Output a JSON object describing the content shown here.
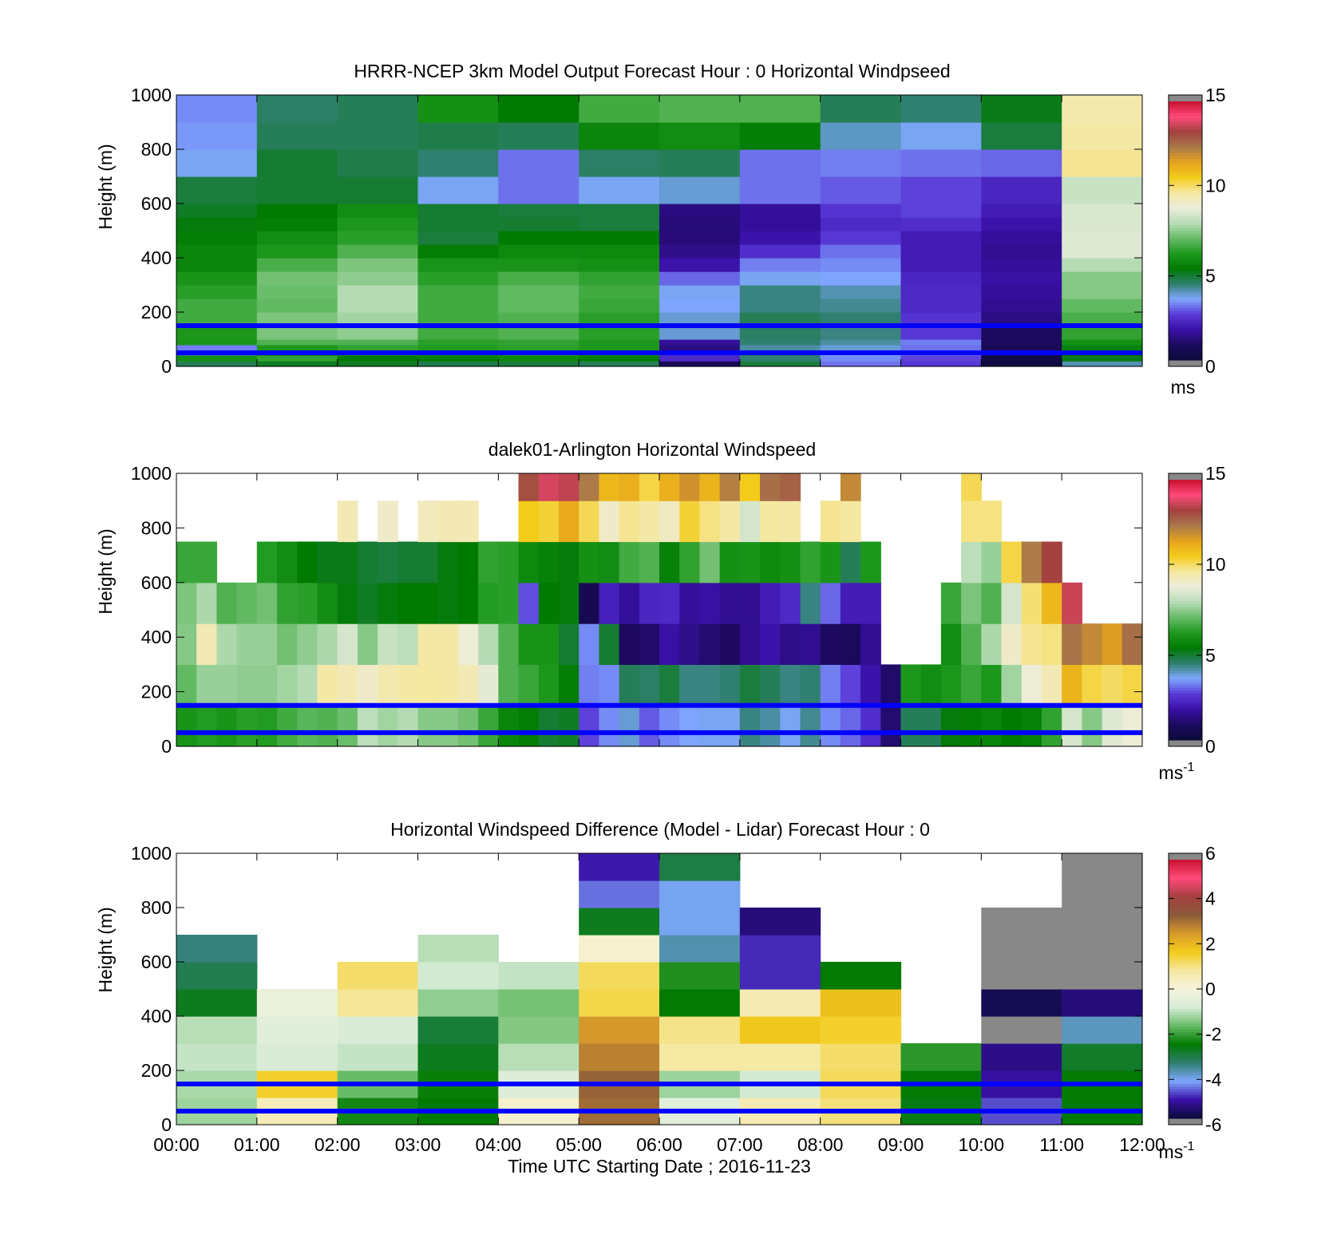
{
  "colors": {
    "windspeed_colormap": [
      "#888888",
      "#0b0b3a",
      "#1c0a5e",
      "#3a10a8",
      "#5a3ad8",
      "#7fa8ff",
      "#2f7f6f",
      "#007a00",
      "#1f9a1f",
      "#66bb66",
      "#b9ddb9",
      "#ececdc",
      "#f5e8a0",
      "#f3cc1a",
      "#e6a21e",
      "#a8784a",
      "#a44040",
      "#ff4a7a",
      "#c8102e",
      "#888888"
    ],
    "difference_colormap": [
      "#888888",
      "#0b0b3a",
      "#3a10a8",
      "#7fa8ff",
      "#2f7f6f",
      "#007a00",
      "#66bb66",
      "#d8ecd8",
      "#f5f2dc",
      "#f5e8a0",
      "#f3cc1a",
      "#d89a2a",
      "#8a5a3a",
      "#a44040",
      "#ff4a7a",
      "#c8102e",
      "#888888"
    ],
    "reference_line": "#0000ff"
  },
  "xlabel": "Time UTC  Starting Date ; 2016-11-23",
  "chart_data": [
    {
      "type": "heatmap",
      "title": "HRRR-NCEP 3km Model Output   Forecast Hour : 0 Horizontal Windpseed",
      "ylabel": "Height (m)",
      "xlim": [
        0,
        12
      ],
      "ylim": [
        0,
        1000
      ],
      "x_ticks": [
        "00:00",
        "01:00",
        "02:00",
        "03:00",
        "04:00",
        "05:00",
        "06:00",
        "07:00",
        "08:00",
        "09:00",
        "10:00",
        "11:00",
        "12:00"
      ],
      "x_tick_labels_shown": false,
      "y_ticks": [
        0,
        200,
        400,
        600,
        800,
        1000
      ],
      "colorbar": {
        "min": 0,
        "max": 15,
        "ticks": [
          0,
          5,
          10,
          15
        ],
        "unit": "ms",
        "unit_superscript": ""
      },
      "reference_heights_m": [
        50,
        150
      ],
      "height_levels_m": [
        0,
        20,
        40,
        60,
        80,
        100,
        150,
        200,
        250,
        300,
        350,
        400,
        450,
        500,
        550,
        600,
        700,
        800,
        900,
        1000
      ],
      "values": [
        [
          4.6,
          5.9,
          4.4,
          3.2,
          6.0,
          6.1,
          6.6,
          6.6,
          6.3,
          6.0,
          5.6,
          5.6,
          5.4,
          5.2,
          5.0,
          4.8,
          3.6,
          3.4,
          3.3
        ],
        [
          5.0,
          6.4,
          5.9,
          6.1,
          6.8,
          7.3,
          7.3,
          7.0,
          7.1,
          7.2,
          6.7,
          6.1,
          5.8,
          5.4,
          5.3,
          4.9,
          4.9,
          4.6,
          4.5
        ],
        [
          5.0,
          5.3,
          5.9,
          6.4,
          6.8,
          7.5,
          7.7,
          7.9,
          7.9,
          7.5,
          7.3,
          6.8,
          6.3,
          6.1,
          5.8,
          4.9,
          4.7,
          4.6,
          4.6
        ],
        [
          4.7,
          5.4,
          5.8,
          6.2,
          6.3,
          6.6,
          6.6,
          6.6,
          6.6,
          6.3,
          6.0,
          5.4,
          4.8,
          4.9,
          4.9,
          3.6,
          4.4,
          4.7,
          5.9
        ],
        [
          4.8,
          5.7,
          6.1,
          6.3,
          6.4,
          6.8,
          6.8,
          7.0,
          7.0,
          6.7,
          6.0,
          5.7,
          5.3,
          4.9,
          4.8,
          3.1,
          3.1,
          4.6,
          5.3
        ],
        [
          4.6,
          5.4,
          5.8,
          6.1,
          6.1,
          6.3,
          6.3,
          6.5,
          6.6,
          6.4,
          5.9,
          5.7,
          5.3,
          4.8,
          4.8,
          3.6,
          4.5,
          5.6,
          6.6
        ],
        [
          0.8,
          2.3,
          2.4,
          1.3,
          1.6,
          3.8,
          3.8,
          3.5,
          3.6,
          3.0,
          1.8,
          1.4,
          1.2,
          1.2,
          1.3,
          3.8,
          4.6,
          5.8,
          6.8
        ],
        [
          4.8,
          4.4,
          4.5,
          4.1,
          4.4,
          4.5,
          4.6,
          4.3,
          4.3,
          3.6,
          3.2,
          2.4,
          1.8,
          1.6,
          1.6,
          3.1,
          3.1,
          5.4,
          6.8
        ],
        [
          3.1,
          3.3,
          3.5,
          3.8,
          4.1,
          4.3,
          4.4,
          4.2,
          4.0,
          3.5,
          3.3,
          3.1,
          2.6,
          2.3,
          2.5,
          2.9,
          3.2,
          3.9,
          4.6
        ],
        [
          2.6,
          2.7,
          3.0,
          3.1,
          3.2,
          2.6,
          2.5,
          2.3,
          2.3,
          2.2,
          2.0,
          2.0,
          2.0,
          2.4,
          2.7,
          2.7,
          3.1,
          3.6,
          4.4
        ],
        [
          0.2,
          0.3,
          0.6,
          0.7,
          0.9,
          0.9,
          1.3,
          1.5,
          1.6,
          1.7,
          1.6,
          1.5,
          1.6,
          1.8,
          2.0,
          2.2,
          3.0,
          4.8,
          5.1
        ],
        [
          4.0,
          5.1,
          5.3,
          5.5,
          5.9,
          6.4,
          6.7,
          7.0,
          7.4,
          7.4,
          7.9,
          8.6,
          8.6,
          8.5,
          8.5,
          8.2,
          9.8,
          9.6,
          9.5
        ]
      ]
    },
    {
      "type": "heatmap",
      "title": "dalek01-Arlington  Horizontal Windspeed",
      "ylabel": "Height (m)",
      "xlim": [
        0,
        12
      ],
      "ylim": [
        0,
        1000
      ],
      "x_ticks": [
        "00:00",
        "01:00",
        "02:00",
        "03:00",
        "04:00",
        "05:00",
        "06:00",
        "07:00",
        "08:00",
        "09:00",
        "10:00",
        "11:00",
        "12:00"
      ],
      "x_tick_labels_shown": false,
      "y_ticks": [
        0,
        200,
        400,
        600,
        800,
        1000
      ],
      "colorbar": {
        "min": 0,
        "max": 15,
        "ticks": [
          0,
          5,
          10,
          15
        ],
        "unit": "ms",
        "unit_superscript": "-1"
      },
      "reference_heights_m": [
        50,
        150
      ],
      "layers_m": [
        0,
        150,
        300,
        450,
        600,
        750,
        900,
        1000
      ],
      "columns_per_hour": 4,
      "missing": "null",
      "values": [
        [
          6.0,
          7.0,
          7.4,
          7.3,
          6.5,
          null,
          null
        ],
        [
          6.2,
          7.6,
          9.4,
          7.8,
          6.5,
          null,
          null
        ],
        [
          6.0,
          7.6,
          7.8,
          6.8,
          null,
          null,
          null
        ],
        [
          6.3,
          7.5,
          7.6,
          7.0,
          null,
          null,
          null
        ],
        [
          6.2,
          7.5,
          7.6,
          7.2,
          6.2,
          null,
          null
        ],
        [
          6.6,
          7.7,
          7.2,
          6.4,
          5.8,
          null,
          null
        ],
        [
          6.9,
          7.9,
          7.5,
          6.3,
          5.3,
          null,
          null
        ],
        [
          6.8,
          9.6,
          7.8,
          5.8,
          5.1,
          null,
          null
        ],
        [
          7.1,
          9.4,
          8.4,
          5.2,
          5.1,
          9.4,
          null
        ],
        [
          8.0,
          9.1,
          7.4,
          5.0,
          4.9,
          null,
          null
        ],
        [
          7.7,
          9.5,
          8.2,
          5.2,
          4.8,
          9.1,
          null
        ],
        [
          7.9,
          9.6,
          8.0,
          5.3,
          4.9,
          null,
          null
        ],
        [
          7.4,
          9.7,
          9.6,
          5.3,
          4.9,
          9.3,
          null
        ],
        [
          7.4,
          9.6,
          9.6,
          5.2,
          5.2,
          9.4,
          null
        ],
        [
          7.2,
          9.4,
          8.9,
          5.3,
          5.3,
          9.4,
          null
        ],
        [
          6.5,
          8.7,
          7.9,
          6.2,
          6.4,
          null,
          null
        ],
        [
          5.6,
          6.8,
          6.8,
          6.3,
          6.3,
          null,
          null
        ],
        [
          5.4,
          6.5,
          6.0,
          2.8,
          5.7,
          10.6,
          13.0
        ],
        [
          4.9,
          6.1,
          6.0,
          5.3,
          5.5,
          10.4,
          13.7
        ],
        [
          5.0,
          5.4,
          4.9,
          5.2,
          5.2,
          11.3,
          13.5
        ],
        [
          2.7,
          3.2,
          3.3,
          0.6,
          5.9,
          10.2,
          12.3
        ],
        [
          3.3,
          3.3,
          4.9,
          2.1,
          5.8,
          9.1,
          11.0
        ],
        [
          3.8,
          4.6,
          0.9,
          1.6,
          6.6,
          9.8,
          11.2
        ],
        [
          2.9,
          4.5,
          1.0,
          2.2,
          6.8,
          9.6,
          10.3
        ],
        [
          3.3,
          4.8,
          1.7,
          2.3,
          5.5,
          9.2,
          11.2
        ],
        [
          3.5,
          4.3,
          1.4,
          1.6,
          6.4,
          10.4,
          11.8
        ],
        [
          3.6,
          4.3,
          1.1,
          1.7,
          7.2,
          9.9,
          11.1
        ],
        [
          3.6,
          4.4,
          0.9,
          1.5,
          5.9,
          9.6,
          12.2
        ],
        [
          4.3,
          4.8,
          1.5,
          1.5,
          6.0,
          8.4,
          10.6
        ],
        [
          4.1,
          4.6,
          1.8,
          2.0,
          5.7,
          9.7,
          12.5
        ],
        [
          3.6,
          4.3,
          1.4,
          2.3,
          5.9,
          9.6,
          12.7
        ],
        [
          4.2,
          4.4,
          1.5,
          4.3,
          6.4,
          null,
          null
        ],
        [
          3.3,
          3.2,
          0.9,
          3.0,
          6.0,
          9.8,
          null
        ],
        [
          3.0,
          2.7,
          0.8,
          2.0,
          4.6,
          9.7,
          12.0
        ],
        [
          2.4,
          1.8,
          1.5,
          2.0,
          6.1,
          null,
          null
        ],
        [
          1.1,
          1.0,
          null,
          null,
          null,
          null,
          null
        ],
        [
          4.6,
          6.1,
          null,
          null,
          null,
          null,
          null
        ],
        [
          4.6,
          5.8,
          null,
          null,
          null,
          null,
          null
        ],
        [
          5.2,
          6.1,
          5.8,
          6.5,
          null,
          null,
          null
        ],
        [
          5.4,
          6.5,
          6.8,
          7.3,
          8.0,
          9.9,
          10.2
        ],
        [
          5.6,
          6.1,
          7.8,
          6.8,
          7.6,
          9.9,
          null
        ],
        [
          5.3,
          7.7,
          9.1,
          8.4,
          10.3,
          null,
          null
        ],
        [
          5.5,
          8.9,
          9.8,
          10.0,
          12.3,
          null,
          null
        ],
        [
          6.4,
          9.4,
          9.9,
          11.0,
          13.2,
          null,
          null
        ],
        [
          8.4,
          11.1,
          12.4,
          13.6,
          null,
          null,
          null
        ],
        [
          7.4,
          10.3,
          12.0,
          null,
          null,
          null,
          null
        ],
        [
          8.6,
          10.1,
          11.6,
          null,
          null,
          null,
          null
        ],
        [
          8.9,
          10.3,
          12.5,
          null,
          null,
          null,
          null
        ]
      ]
    },
    {
      "type": "heatmap",
      "title": "Horizontal Windspeed Difference (Model - Lidar) Forecast Hour : 0",
      "ylabel": "Height (m)",
      "xlim": [
        0,
        12
      ],
      "ylim": [
        0,
        1000
      ],
      "x_ticks": [
        "00:00",
        "01:00",
        "02:00",
        "03:00",
        "04:00",
        "05:00",
        "06:00",
        "07:00",
        "08:00",
        "09:00",
        "10:00",
        "11:00",
        "12:00"
      ],
      "x_tick_labels_shown": true,
      "y_ticks": [
        0,
        200,
        400,
        600,
        800,
        1000
      ],
      "colorbar": {
        "min": -6,
        "max": 6,
        "ticks": [
          -6,
          -4,
          -2,
          0,
          2,
          4,
          6
        ],
        "unit": "ms",
        "unit_superscript": "-1"
      },
      "reference_heights_m": [
        50,
        150
      ],
      "layers_m": [
        0,
        100,
        200,
        300,
        400,
        500,
        600,
        700,
        800,
        900,
        1000
      ],
      "missing": "null",
      "values": [
        [
          -1.3,
          -1.2,
          -1.0,
          -1.1,
          -2.8,
          -3.2,
          -3.5,
          null,
          null,
          null
        ],
        [
          0.5,
          1.6,
          -0.8,
          -0.6,
          -0.3,
          null,
          null,
          null,
          null,
          null
        ],
        [
          -2.4,
          -1.7,
          -1.0,
          -0.8,
          0.9,
          1.2,
          null,
          null,
          null,
          null
        ],
        [
          -2.6,
          -2.5,
          -2.8,
          -3.0,
          -1.4,
          -0.9,
          -1.1,
          null,
          null,
          null
        ],
        [
          0.2,
          -0.7,
          -1.1,
          -1.5,
          -1.6,
          -1.0,
          null,
          null,
          null,
          null
        ],
        [
          3.2,
          3.3,
          2.9,
          2.6,
          1.4,
          1.3,
          0.2,
          -2.8,
          -4.6,
          -5.1
        ],
        [
          -0.6,
          -1.3,
          0.8,
          1.0,
          -2.6,
          -2.3,
          -3.8,
          -4.2,
          -4.2,
          -3.1
        ],
        [
          0.6,
          -0.9,
          0.8,
          1.8,
          0.6,
          -5.0,
          -5.0,
          -5.5,
          null,
          null
        ],
        [
          1.1,
          1.3,
          1.2,
          1.6,
          1.9,
          -2.6,
          null,
          null,
          null,
          null
        ],
        [
          -2.7,
          -2.6,
          -2.2,
          null,
          null,
          null,
          null,
          null,
          null,
          null
        ],
        [
          -4.8,
          -5.2,
          -5.4,
          -6.6,
          -5.8,
          -6.6,
          -6.6,
          -6.6,
          null,
          null
        ],
        [
          -2.6,
          -2.6,
          -2.9,
          -3.9,
          -5.5,
          -6.6,
          -6.6,
          -6.6,
          -6.6,
          -6.6
        ]
      ]
    }
  ]
}
